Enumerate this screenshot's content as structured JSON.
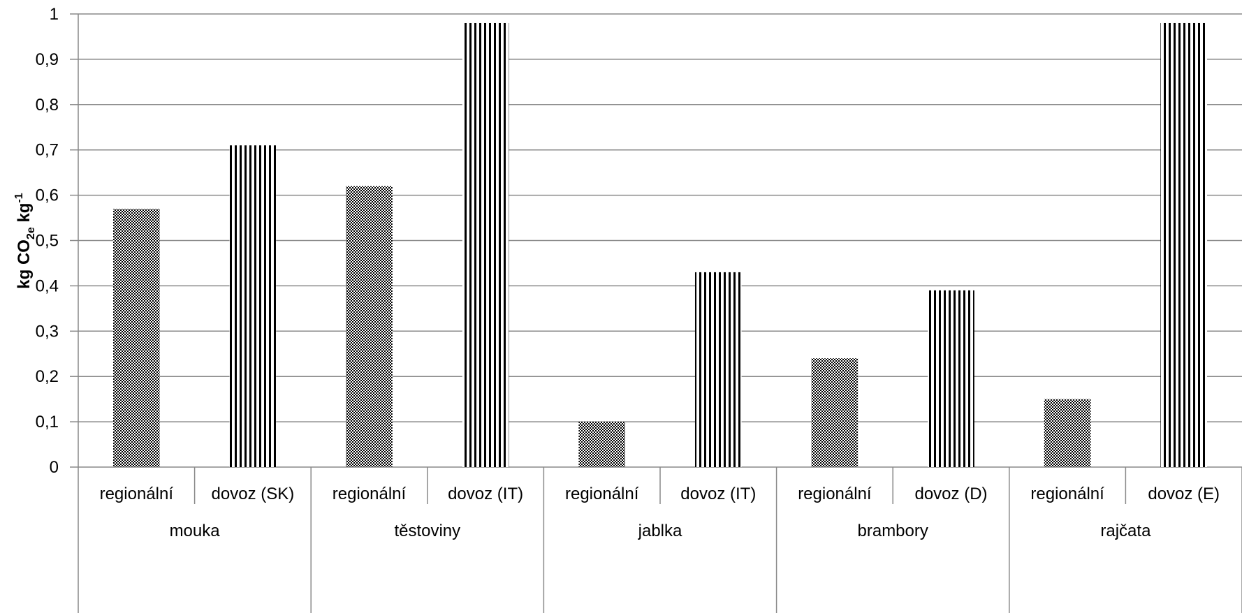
{
  "chart_data": {
    "type": "bar",
    "ylabel": {
      "main": "kg CO",
      "sub": "2e",
      "unit": " kg",
      "sup": "-1"
    },
    "ylim": [
      0,
      1
    ],
    "yticks": [
      "0",
      "0,1",
      "0,2",
      "0,3",
      "0,4",
      "0,5",
      "0,6",
      "0,7",
      "0,8",
      "0,9",
      "1"
    ],
    "grid": true,
    "groups": [
      {
        "name": "mouka",
        "bars": [
          {
            "label": "regionální",
            "value": 0.57,
            "pattern": "checker"
          },
          {
            "label": "dovoz (SK)",
            "value": 0.71,
            "pattern": "vertical"
          }
        ]
      },
      {
        "name": "těstoviny",
        "bars": [
          {
            "label": "regionální",
            "value": 0.62,
            "pattern": "checker"
          },
          {
            "label": "dovoz (IT)",
            "value": 0.98,
            "pattern": "vertical"
          }
        ]
      },
      {
        "name": "jablka",
        "bars": [
          {
            "label": "regionální",
            "value": 0.1,
            "pattern": "checker"
          },
          {
            "label": "dovoz (IT)",
            "value": 0.43,
            "pattern": "vertical"
          }
        ]
      },
      {
        "name": "brambory",
        "bars": [
          {
            "label": "regionální",
            "value": 0.24,
            "pattern": "checker"
          },
          {
            "label": "dovoz (D)",
            "value": 0.39,
            "pattern": "vertical"
          }
        ]
      },
      {
        "name": "rajčata",
        "bars": [
          {
            "label": "regionální",
            "value": 0.15,
            "pattern": "checker"
          },
          {
            "label": "dovoz (E)",
            "value": 0.98,
            "pattern": "vertical"
          }
        ]
      }
    ],
    "colors": {
      "bar_fill": "#000000",
      "grid": "#898989",
      "axis": "#898989",
      "background": "#ffffff"
    }
  }
}
